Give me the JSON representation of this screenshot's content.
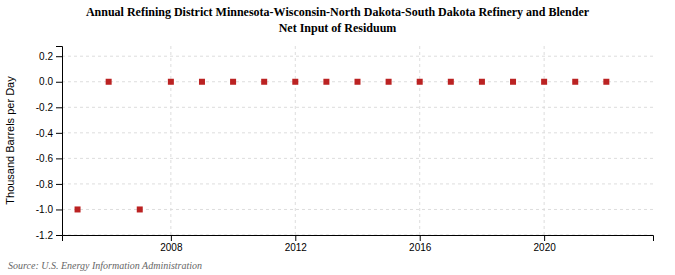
{
  "chart_data": {
    "type": "scatter",
    "title": "Annual Refining District Minnesota-Wisconsin-North Dakota-South Dakota Refinery and Blender",
    "subtitle": "Net Input of Residuum",
    "y_label": "Thousand Barrels per Day",
    "annotations": [
      "Source: U.S. Energy Information Administration"
    ],
    "x": [
      2005,
      2006,
      2007,
      2008,
      2009,
      2010,
      2011,
      2012,
      2013,
      2014,
      2015,
      2016,
      2017,
      2018,
      2019,
      2020,
      2021,
      2022
    ],
    "values": [
      -1.0,
      0.0,
      -1.0,
      0.0,
      0.0,
      0.0,
      0.0,
      0.0,
      0.0,
      0.0,
      0.0,
      0.0,
      0.0,
      0.0,
      0.0,
      0.0,
      0.0,
      0.0
    ],
    "xlim": [
      2004.5,
      2023.5
    ],
    "xticks": [
      2008,
      2012,
      2016,
      2020
    ],
    "ylim": [
      -1.2,
      0.28
    ],
    "yticks": [
      0.2,
      {
        "value": 0.0,
        "label": "0.0"
      },
      -0.2,
      -0.4,
      -0.6,
      -0.8,
      {
        "value": -1.0,
        "label": "-1.0"
      },
      -1.2
    ],
    "color": "#bb2222",
    "marker": "square",
    "grid": true
  }
}
